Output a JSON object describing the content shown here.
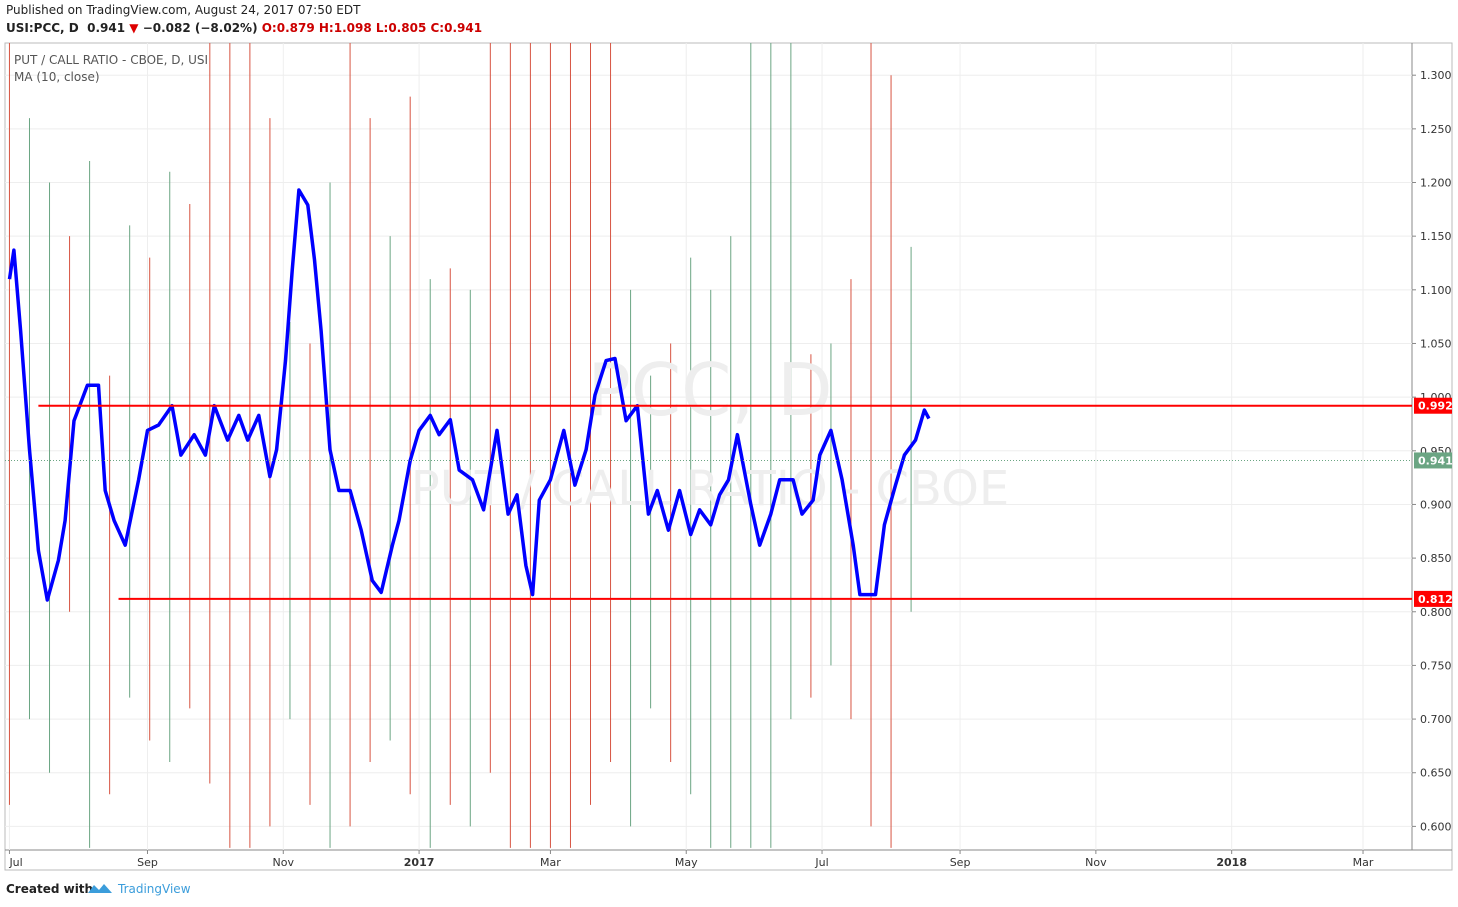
{
  "header": {
    "published": "Published on TradingView.com, August 24, 2017 07:50 EDT",
    "symbol": "USI:PCC, D",
    "last": "0.941",
    "arrow": "▼",
    "change": "−0.082 (−8.02%)",
    "open": "O:0.879",
    "high": "H:1.098",
    "low": "L:0.805",
    "close": "C:0.941"
  },
  "footer": {
    "created": "Created with",
    "brand": "TradingView"
  },
  "chart_data": {
    "type": "line",
    "title": "PUT / CALL RATIO - CBOE, D, USI",
    "watermark": "PCC, D",
    "watermark_sub": "PUT / CALL RATIO - CBOE",
    "xlim": [
      -2,
      630
    ],
    "ylim": [
      0.578,
      1.33
    ],
    "xticks": [
      {
        "value": 0,
        "label": "Jul"
      },
      {
        "value": 62,
        "label": "Sep"
      },
      {
        "value": 123,
        "label": "Nov"
      },
      {
        "value": 184,
        "label": "2017"
      },
      {
        "value": 243,
        "label": "Mar"
      },
      {
        "value": 304,
        "label": "May"
      },
      {
        "value": 365,
        "label": "Jul"
      },
      {
        "value": 427,
        "label": "Sep"
      },
      {
        "value": 488,
        "label": "Nov"
      },
      {
        "value": 549,
        "label": "2018"
      },
      {
        "value": 608,
        "label": "Mar"
      }
    ],
    "yticks": [
      {
        "value": 0.6,
        "label": "0.600"
      },
      {
        "value": 0.65,
        "label": "0.650"
      },
      {
        "value": 0.7,
        "label": "0.700"
      },
      {
        "value": 0.75,
        "label": "0.750"
      },
      {
        "value": 0.8,
        "label": "0.800"
      },
      {
        "value": 0.85,
        "label": "0.850"
      },
      {
        "value": 0.9,
        "label": "0.900"
      },
      {
        "value": 0.95,
        "label": "0.950"
      },
      {
        "value": 1.0,
        "label": "1.000"
      },
      {
        "value": 1.05,
        "label": "1.050"
      },
      {
        "value": 1.1,
        "label": "1.100"
      },
      {
        "value": 1.15,
        "label": "1.150"
      },
      {
        "value": 1.2,
        "label": "1.200"
      },
      {
        "value": 1.25,
        "label": "1.250"
      },
      {
        "value": 1.3,
        "label": "1.300"
      }
    ],
    "grid": true,
    "bars": {
      "x": [
        0,
        9,
        18,
        27,
        36,
        45,
        54,
        63,
        72,
        81,
        90,
        99,
        108,
        117,
        126,
        135,
        144,
        153,
        162,
        171,
        180,
        189,
        198,
        207,
        216,
        225,
        234,
        243,
        252,
        261,
        270,
        279,
        288,
        297,
        306,
        315,
        324,
        333,
        342,
        351,
        360,
        369,
        378,
        387,
        396,
        405
      ],
      "high": [
        1.33,
        1.26,
        1.2,
        1.15,
        1.22,
        1.02,
        1.16,
        1.13,
        1.21,
        1.18,
        1.33,
        1.33,
        1.33,
        1.26,
        1.07,
        1.05,
        1.2,
        1.33,
        1.26,
        1.15,
        1.28,
        1.11,
        1.12,
        1.1,
        1.33,
        1.33,
        1.33,
        1.33,
        1.33,
        1.33,
        1.33,
        1.1,
        1.02,
        1.05,
        1.13,
        1.1,
        1.15,
        1.33,
        1.33,
        1.33,
        1.04,
        1.05,
        1.11,
        1.33,
        1.3,
        1.14
      ],
      "low": [
        0.62,
        0.7,
        0.65,
        0.8,
        0.58,
        0.63,
        0.72,
        0.68,
        0.66,
        0.71,
        0.64,
        0.58,
        0.58,
        0.6,
        0.7,
        0.62,
        0.58,
        0.6,
        0.66,
        0.68,
        0.63,
        0.58,
        0.62,
        0.6,
        0.65,
        0.58,
        0.58,
        0.58,
        0.58,
        0.62,
        0.66,
        0.6,
        0.71,
        0.66,
        0.63,
        0.58,
        0.58,
        0.58,
        0.58,
        0.7,
        0.72,
        0.75,
        0.7,
        0.6,
        0.58,
        0.8
      ],
      "colors": [
        "#d75442",
        "#6ba583",
        "#6ba583",
        "#d75442",
        "#6ba583",
        "#d75442",
        "#6ba583",
        "#d75442",
        "#6ba583",
        "#d75442",
        "#d75442",
        "#d75442",
        "#d75442",
        "#d75442",
        "#6ba583",
        "#d75442",
        "#6ba583",
        "#d75442",
        "#d75442",
        "#6ba583",
        "#d75442",
        "#6ba583",
        "#d75442",
        "#6ba583",
        "#d75442",
        "#d75442",
        "#d75442",
        "#d75442",
        "#d75442",
        "#d75442",
        "#d75442",
        "#6ba583",
        "#6ba583",
        "#d75442",
        "#6ba583",
        "#6ba583",
        "#6ba583",
        "#6ba583",
        "#6ba583",
        "#6ba583",
        "#d75442",
        "#6ba583",
        "#d75442",
        "#d75442",
        "#d75442",
        "#6ba583"
      ]
    },
    "series": [
      {
        "name": "MA (10, close)",
        "color": "#0000ff",
        "x": [
          0,
          2,
          5,
          9,
          13,
          17,
          22,
          25,
          29,
          35,
          40,
          43,
          47,
          52,
          58,
          62,
          67,
          73,
          77,
          83,
          88,
          92,
          98,
          103,
          107,
          112,
          117,
          120,
          124,
          127,
          130,
          134,
          137,
          140,
          144,
          148,
          153,
          158,
          163,
          167,
          172,
          175,
          180,
          184,
          189,
          193,
          198,
          202,
          208,
          213,
          219,
          224,
          228,
          232,
          235,
          238,
          243,
          249,
          254,
          259,
          263,
          268,
          272,
          277,
          282,
          287,
          291,
          296,
          301,
          306,
          310,
          315,
          319,
          323,
          327,
          333,
          337,
          342,
          346,
          352,
          356,
          361,
          364,
          369,
          374,
          379,
          382,
          389,
          393,
          398,
          402,
          407,
          411,
          413
        ],
        "values": [
          1.11,
          1.137,
          1.062,
          0.951,
          0.857,
          0.811,
          0.848,
          0.885,
          0.978,
          1.011,
          1.011,
          0.913,
          0.885,
          0.862,
          0.923,
          0.969,
          0.974,
          0.992,
          0.946,
          0.965,
          0.946,
          0.992,
          0.96,
          0.983,
          0.96,
          0.983,
          0.926,
          0.951,
          1.034,
          1.118,
          1.193,
          1.179,
          1.128,
          1.062,
          0.951,
          0.913,
          0.913,
          0.876,
          0.829,
          0.818,
          0.862,
          0.885,
          0.941,
          0.969,
          0.983,
          0.965,
          0.979,
          0.932,
          0.923,
          0.895,
          0.969,
          0.891,
          0.909,
          0.843,
          0.816,
          0.904,
          0.923,
          0.969,
          0.918,
          0.951,
          1.002,
          1.034,
          1.036,
          0.978,
          0.992,
          0.891,
          0.913,
          0.876,
          0.913,
          0.872,
          0.895,
          0.881,
          0.909,
          0.923,
          0.965,
          0.9,
          0.862,
          0.891,
          0.923,
          0.923,
          0.891,
          0.904,
          0.946,
          0.969,
          0.923,
          0.862,
          0.816,
          0.816,
          0.881,
          0.918,
          0.946,
          0.96,
          0.988,
          0.98
        ]
      }
    ],
    "hlines": [
      {
        "value": 0.992,
        "from": 13,
        "color": "#ff0000"
      },
      {
        "value": 0.812,
        "from": 49,
        "color": "#ff0000"
      }
    ],
    "last_price": {
      "value": 0.941,
      "color": "#6ba583"
    }
  }
}
